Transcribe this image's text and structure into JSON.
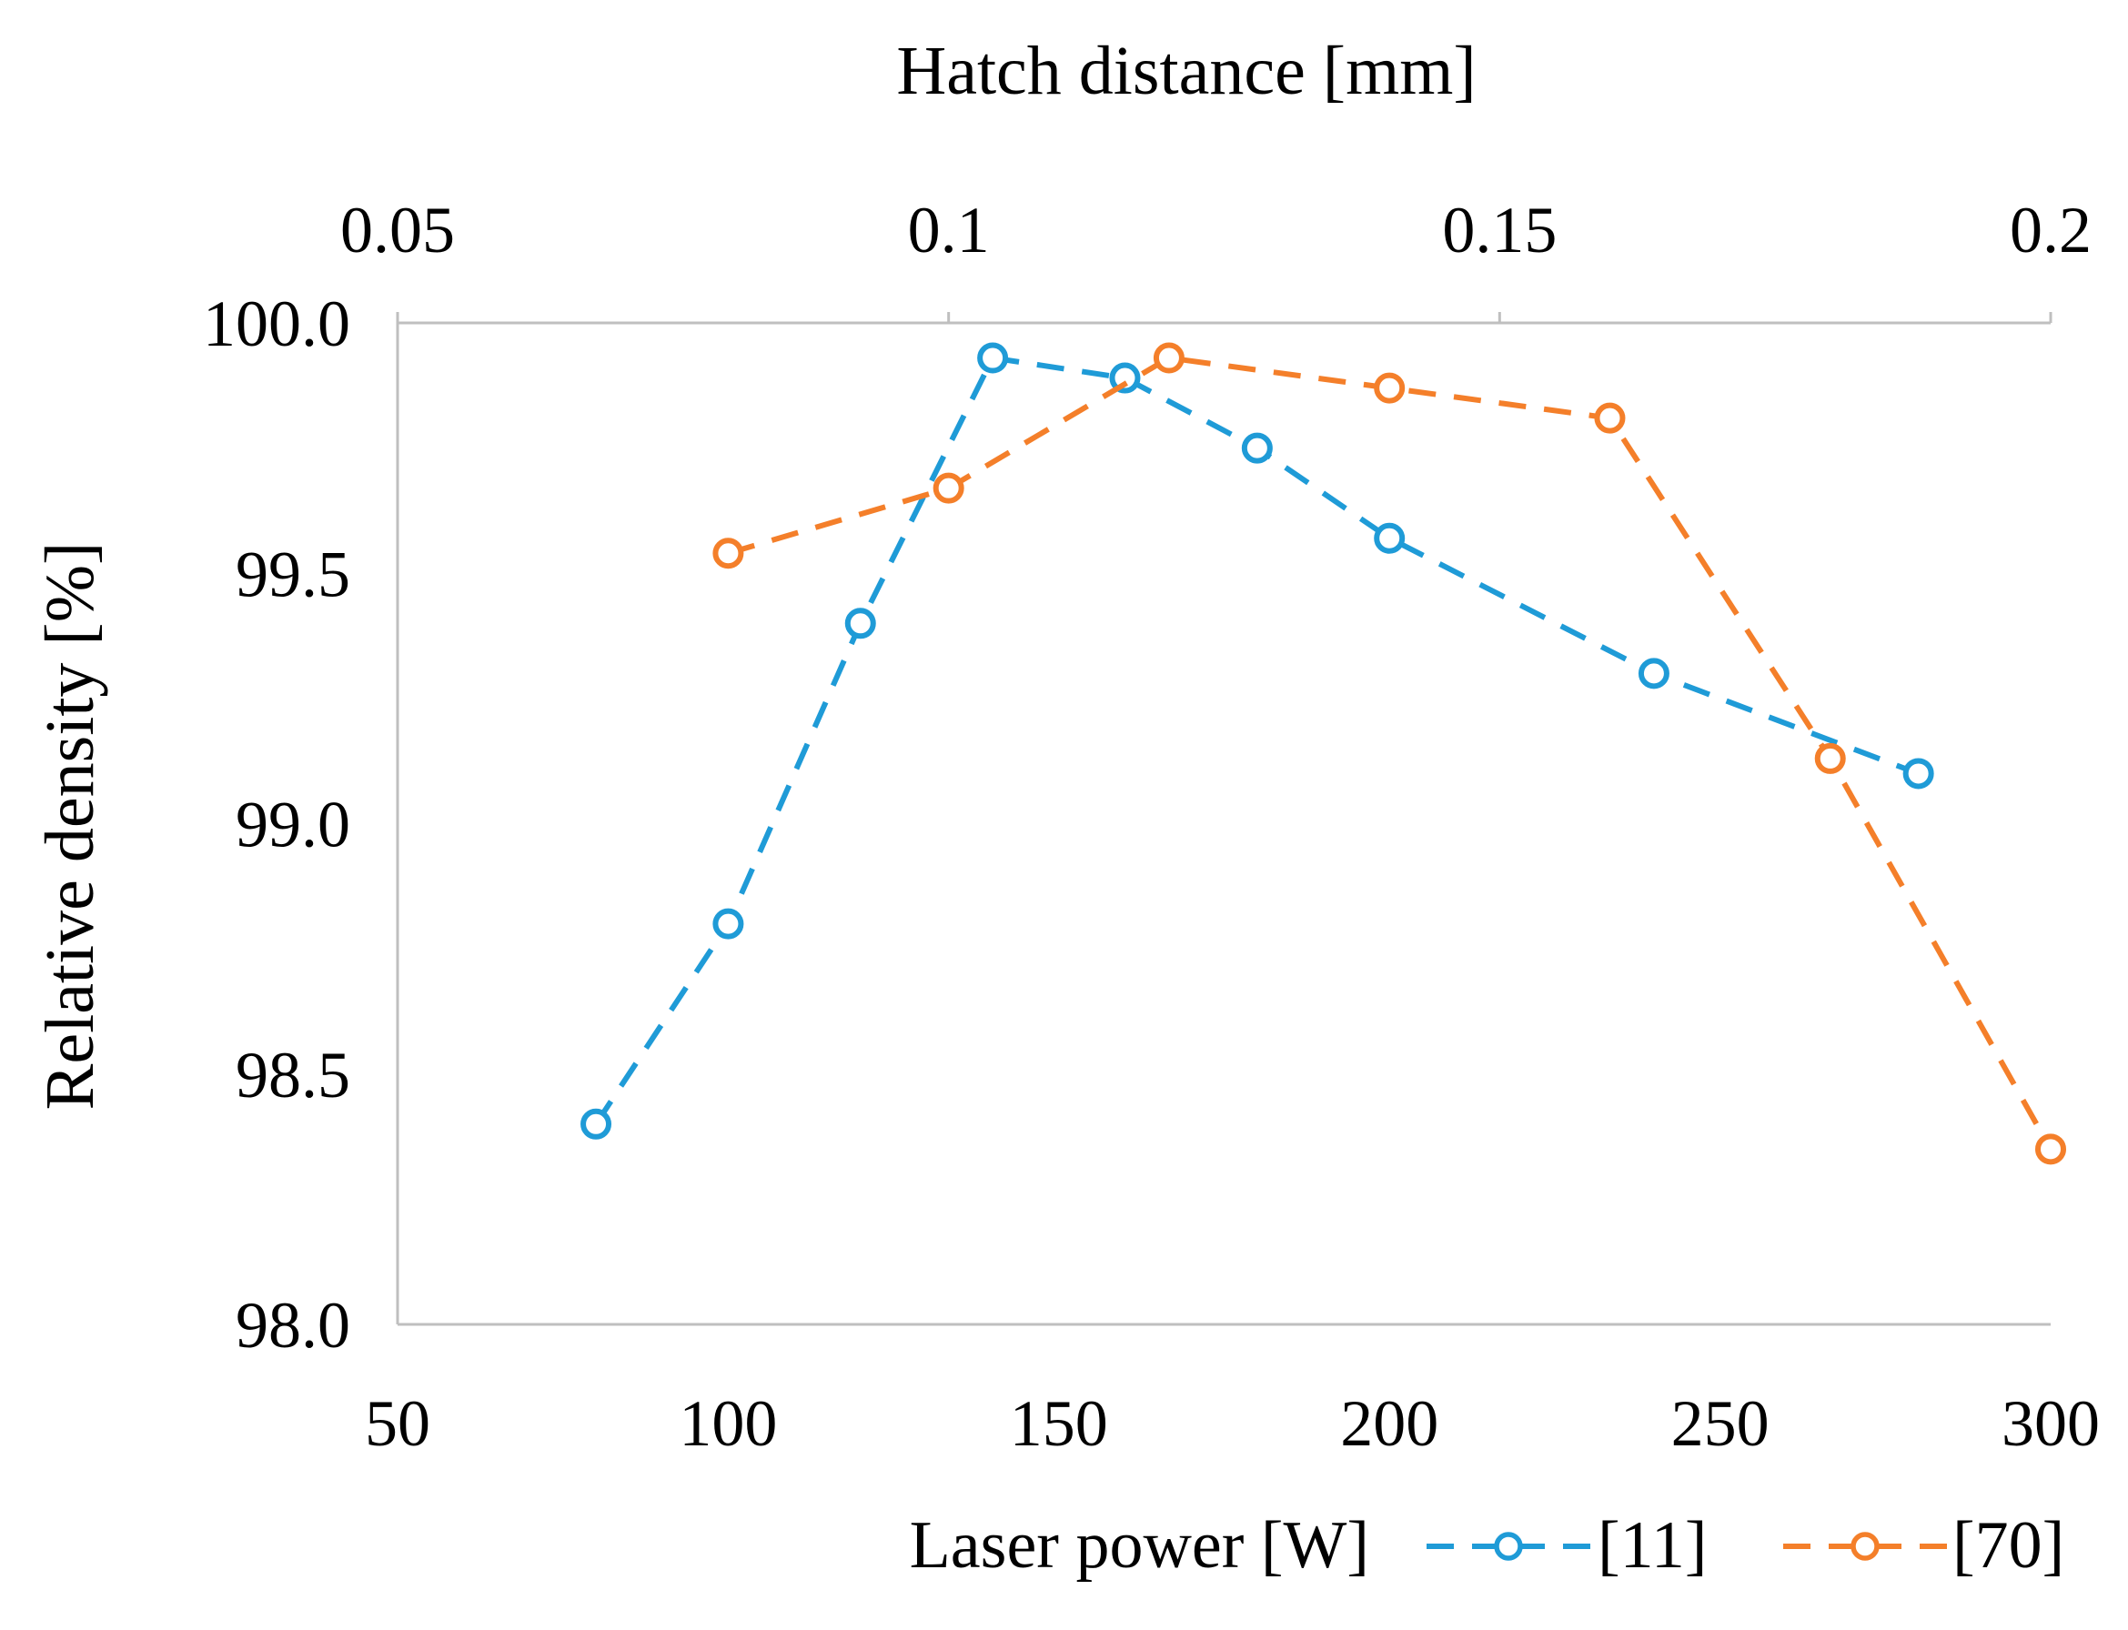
{
  "chart_data": {
    "type": "line",
    "title": "Hatch distance [mm]",
    "ylabel": "Relative density [%]",
    "xlabel": "Laser power [W]",
    "x_axis": {
      "label": "Laser power [W]",
      "range": [
        50,
        300
      ],
      "ticks": [
        50,
        100,
        150,
        200,
        250,
        300
      ],
      "tick_labels": [
        "50",
        "100",
        "150",
        "200",
        "250",
        "300"
      ]
    },
    "x2_axis": {
      "label": "Hatch distance [mm]",
      "range": [
        0.05,
        0.2
      ],
      "ticks": [
        0.05,
        0.1,
        0.15,
        0.2
      ],
      "tick_labels": [
        "0.05",
        "0.1",
        "0.15",
        "0.2"
      ]
    },
    "y_axis": {
      "label": "Relative density [%]",
      "range": [
        98.0,
        100.0
      ],
      "ticks": [
        98.0,
        98.5,
        99.0,
        99.5,
        100.0
      ],
      "tick_labels": [
        "98.0",
        "98.5",
        "99.0",
        "99.5",
        "100.0"
      ]
    },
    "series": [
      {
        "name": "[11]",
        "axis": "x",
        "color": "#1f9bd7",
        "style": "dashed",
        "marker": "circle",
        "x": [
          80,
          100,
          120,
          140,
          160,
          180,
          200,
          240,
          280
        ],
        "y": [
          98.4,
          98.8,
          99.4,
          99.93,
          99.89,
          99.75,
          99.57,
          99.3,
          99.1
        ]
      },
      {
        "name": "[70]",
        "axis": "x2",
        "color": "#f47f2a",
        "style": "dashed",
        "marker": "circle",
        "x": [
          0.08,
          0.1,
          0.12,
          0.14,
          0.16,
          0.18,
          0.2
        ],
        "y": [
          99.54,
          99.67,
          99.93,
          99.87,
          99.81,
          99.13,
          98.35
        ]
      }
    ],
    "legend": {
      "position": "bottom-right",
      "entries": [
        "[11]",
        "[70]"
      ]
    },
    "grid": false
  }
}
